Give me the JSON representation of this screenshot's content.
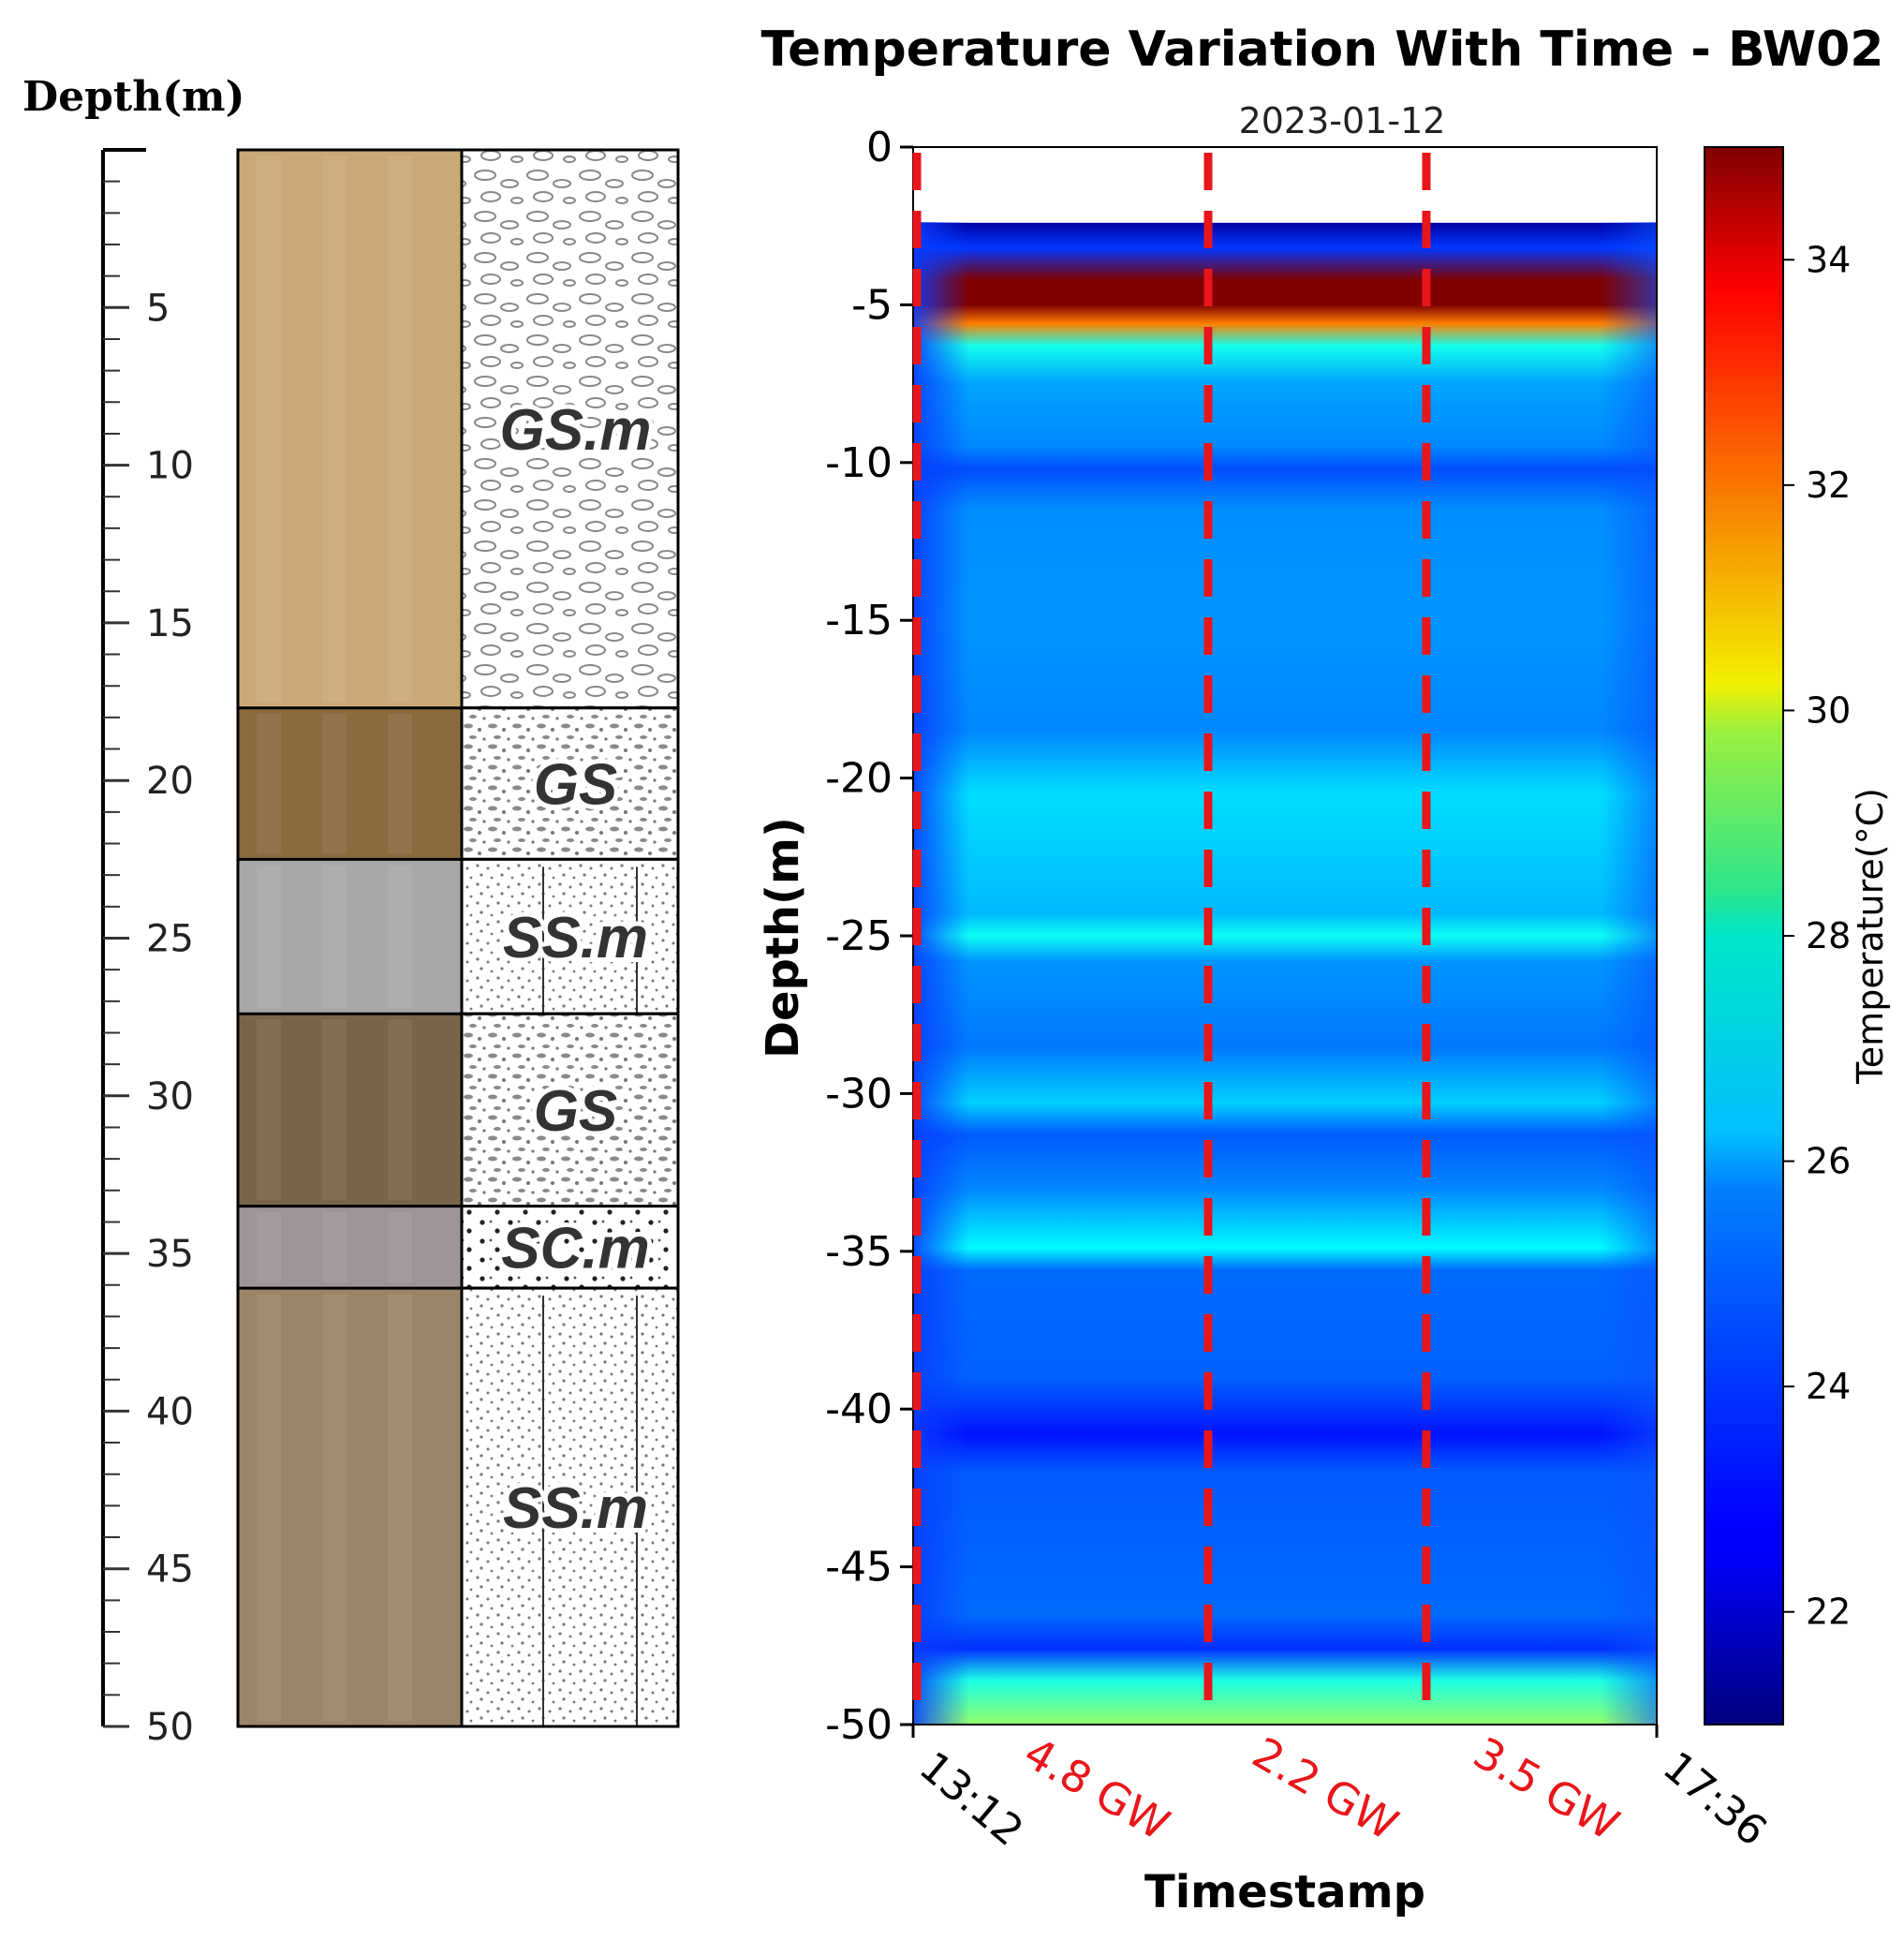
{
  "column": {
    "depth_label": "Depth(m)",
    "depth_range": [
      0,
      50
    ],
    "major_ticks": [
      5,
      10,
      15,
      20,
      25,
      30,
      35,
      40,
      45,
      50
    ],
    "layers": [
      {
        "label": "GS.m",
        "top": 0,
        "bottom": 17.7,
        "photo_color": "#caa878",
        "pattern": "pebbles"
      },
      {
        "label": "GS",
        "top": 17.7,
        "bottom": 22.5,
        "photo_color": "#8a6a3e",
        "pattern": "gravel"
      },
      {
        "label": "SS.m",
        "top": 22.5,
        "bottom": 27.4,
        "photo_color": "#a8a8aa",
        "pattern": "sand"
      },
      {
        "label": "GS",
        "top": 27.4,
        "bottom": 33.5,
        "photo_color": "#7a6448",
        "pattern": "gravel"
      },
      {
        "label": "SC.m",
        "top": 33.5,
        "bottom": 36.1,
        "photo_color": "#9c9497",
        "pattern": "clay"
      },
      {
        "label": "SS.m",
        "top": 36.1,
        "bottom": 50,
        "photo_color": "#9a8468",
        "pattern": "sand"
      }
    ]
  },
  "chart_data": {
    "type": "heatmap",
    "title": "Temperature Variation With Time - BW02",
    "subtitle": "2023-01-12",
    "xlabel": "Timestamp",
    "ylabel": "Depth(m)",
    "x_ticks": [
      "13:12",
      "17:36"
    ],
    "x_range_hours": [
      13.2,
      17.6
    ],
    "ylim": [
      -50,
      0
    ],
    "y_ticks": [
      0,
      -5,
      -10,
      -15,
      -20,
      -25,
      -30,
      -35,
      -40,
      -45,
      -50
    ],
    "colorbar": {
      "label": "Temperature(°C)",
      "range": [
        21,
        35
      ],
      "ticks": [
        22,
        24,
        26,
        28,
        30,
        32,
        34
      ],
      "colormap": "jet"
    },
    "events": [
      {
        "time_frac": 0.0,
        "label": ""
      },
      {
        "time_frac": 0.395,
        "label": "4.8 GW"
      },
      {
        "time_frac": 0.69,
        "label": "2.2 GW"
      },
      {
        "time_frac": 0.99,
        "label": "3.5 GW"
      }
    ],
    "event_line_color": "#e8161b",
    "profile": [
      {
        "depth": -2.4,
        "temp": 21.5
      },
      {
        "depth": -3.2,
        "temp": 23.5
      },
      {
        "depth": -4.2,
        "temp": 35.0
      },
      {
        "depth": -5.0,
        "temp": 35.0
      },
      {
        "depth": -5.6,
        "temp": 31.5
      },
      {
        "depth": -6.3,
        "temp": 26.5
      },
      {
        "depth": -7.5,
        "temp": 25.0
      },
      {
        "depth": -9.5,
        "temp": 24.6
      },
      {
        "depth": -10.2,
        "temp": 23.8
      },
      {
        "depth": -11.5,
        "temp": 24.7
      },
      {
        "depth": -15.0,
        "temp": 24.8
      },
      {
        "depth": -18.5,
        "temp": 24.6
      },
      {
        "depth": -20.5,
        "temp": 25.8
      },
      {
        "depth": -24.3,
        "temp": 25.3
      },
      {
        "depth": -25.0,
        "temp": 26.4
      },
      {
        "depth": -25.8,
        "temp": 24.8
      },
      {
        "depth": -28.5,
        "temp": 24.4
      },
      {
        "depth": -30.3,
        "temp": 25.6
      },
      {
        "depth": -31.3,
        "temp": 24.0
      },
      {
        "depth": -33.0,
        "temp": 24.6
      },
      {
        "depth": -34.9,
        "temp": 26.2
      },
      {
        "depth": -35.6,
        "temp": 24.2
      },
      {
        "depth": -39.0,
        "temp": 24.1
      },
      {
        "depth": -40.8,
        "temp": 23.0
      },
      {
        "depth": -42.0,
        "temp": 24.0
      },
      {
        "depth": -46.5,
        "temp": 24.2
      },
      {
        "depth": -47.6,
        "temp": 23.4
      },
      {
        "depth": -48.6,
        "temp": 26.6
      },
      {
        "depth": -50.0,
        "temp": 28.3
      }
    ]
  }
}
